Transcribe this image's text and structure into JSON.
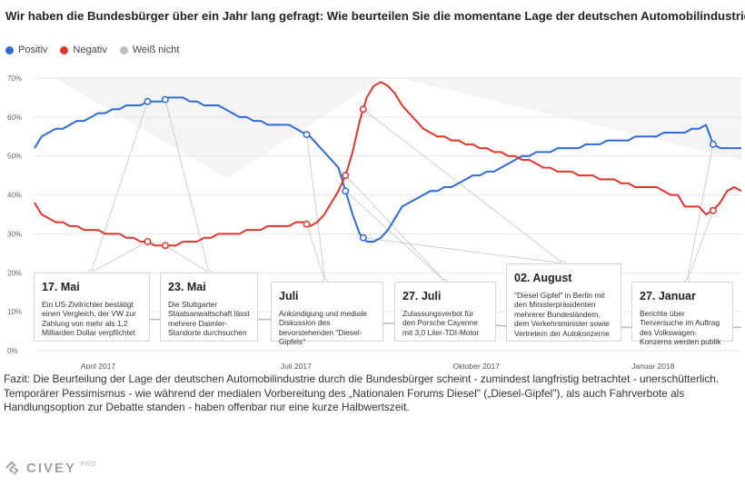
{
  "title": "Wir haben die Bundesbürger über ein Jahr lang gefragt: Wie beurteilen Sie die momentane Lage der deutschen Automobilindustrie?",
  "legend": [
    {
      "label": "Positiv",
      "color": "#2f6bd6"
    },
    {
      "label": "Negativ",
      "color": "#e0352b"
    },
    {
      "label": "Weiß nicht",
      "color": "#bdbdbd"
    }
  ],
  "chart_data": {
    "type": "line",
    "title": "Wie beurteilen Sie die momentane Lage der deutschen Automobilindustrie?",
    "ylim": [
      0,
      70
    ],
    "yticks": [
      0,
      10,
      20,
      30,
      40,
      50,
      60,
      70
    ],
    "ytick_labels": [
      "0%",
      "10%",
      "20%",
      "30%",
      "40%",
      "50%",
      "60%",
      "70%"
    ],
    "xlim": [
      0,
      100
    ],
    "xticks": [
      {
        "x": 9,
        "label": "April 2017"
      },
      {
        "x": 37,
        "label": "Juli 2017"
      },
      {
        "x": 62.5,
        "label": "Oktober 2017"
      },
      {
        "x": 87.5,
        "label": "Januar 2018"
      }
    ],
    "series": [
      {
        "name": "Positiv",
        "color": "#2f6bd6",
        "x": [
          0,
          1,
          2,
          3,
          4,
          5,
          6,
          7,
          8,
          9,
          10,
          11,
          12,
          13,
          14,
          15,
          16,
          17,
          18,
          19,
          20,
          21,
          22,
          23,
          24,
          25,
          26,
          27,
          28,
          29,
          30,
          31,
          32,
          33,
          34,
          35,
          36,
          37,
          38,
          39,
          40,
          41,
          42,
          43,
          44,
          45,
          46,
          47,
          48,
          49,
          50,
          51,
          52,
          53,
          54,
          55,
          56,
          57,
          58,
          59,
          60,
          61,
          62,
          63,
          64,
          65,
          66,
          67,
          68,
          69,
          70,
          71,
          72,
          73,
          74,
          75,
          76,
          77,
          78,
          79,
          80,
          81,
          82,
          83,
          84,
          85,
          86,
          87,
          88,
          89,
          90,
          91,
          92,
          93,
          94,
          95,
          96,
          97,
          98,
          99,
          100
        ],
        "values": [
          52,
          55,
          56,
          57,
          57,
          58,
          59,
          59,
          60,
          61,
          61,
          62,
          62,
          63,
          63,
          63,
          64,
          64,
          64,
          65,
          65,
          65,
          64,
          64,
          63,
          63,
          63,
          62,
          61,
          60,
          60,
          59,
          59,
          58,
          58,
          58,
          58,
          57,
          56,
          55,
          53,
          51,
          49,
          47,
          41,
          35,
          30,
          28,
          28,
          29,
          31,
          34,
          37,
          38,
          39,
          40,
          41,
          41,
          42,
          42,
          43,
          44,
          45,
          45,
          46,
          46,
          47,
          48,
          49,
          50,
          50,
          51,
          51,
          51,
          52,
          52,
          52,
          52,
          53,
          53,
          53,
          54,
          54,
          54,
          54,
          55,
          55,
          55,
          55,
          56,
          56,
          56,
          56,
          57,
          57,
          58,
          53,
          52,
          52,
          52,
          52
        ]
      },
      {
        "name": "Negativ",
        "color": "#e0352b",
        "x": [
          0,
          1,
          2,
          3,
          4,
          5,
          6,
          7,
          8,
          9,
          10,
          11,
          12,
          13,
          14,
          15,
          16,
          17,
          18,
          19,
          20,
          21,
          22,
          23,
          24,
          25,
          26,
          27,
          28,
          29,
          30,
          31,
          32,
          33,
          34,
          35,
          36,
          37,
          38,
          39,
          40,
          41,
          42,
          43,
          44,
          45,
          46,
          47,
          48,
          49,
          50,
          51,
          52,
          53,
          54,
          55,
          56,
          57,
          58,
          59,
          60,
          61,
          62,
          63,
          64,
          65,
          66,
          67,
          68,
          69,
          70,
          71,
          72,
          73,
          74,
          75,
          76,
          77,
          78,
          79,
          80,
          81,
          82,
          83,
          84,
          85,
          86,
          87,
          88,
          89,
          90,
          91,
          92,
          93,
          94,
          95,
          96,
          97,
          98,
          99,
          100
        ],
        "values": [
          38,
          35,
          34,
          33,
          33,
          32,
          32,
          31,
          31,
          31,
          30,
          30,
          30,
          29,
          29,
          28,
          28,
          27,
          27,
          27,
          27,
          28,
          28,
          28,
          29,
          29,
          30,
          30,
          30,
          30,
          31,
          31,
          31,
          32,
          32,
          32,
          32,
          33,
          33,
          32,
          33,
          35,
          38,
          41,
          45,
          51,
          59,
          65,
          68,
          69,
          68,
          66,
          63,
          61,
          59,
          57,
          56,
          55,
          55,
          54,
          54,
          53,
          53,
          52,
          52,
          51,
          51,
          50,
          50,
          49,
          49,
          48,
          47,
          47,
          46,
          46,
          46,
          45,
          45,
          45,
          44,
          44,
          44,
          43,
          43,
          42,
          42,
          42,
          42,
          41,
          40,
          40,
          37,
          37,
          37,
          35,
          36,
          38,
          41,
          42,
          41
        ]
      },
      {
        "name": "Weiß nicht",
        "color": "#bdbdbd",
        "x": [
          0,
          10,
          20,
          30,
          40,
          50,
          60,
          70,
          80,
          90,
          100
        ],
        "values": [
          8,
          8,
          8,
          8,
          8,
          7,
          7,
          6,
          6,
          6,
          6
        ]
      }
    ],
    "annotations": [
      {
        "date": "17. Mai",
        "text": "Ein US-Zivilrichter bestätigt einen Vergleich, der VW zur Zahlung von mehr als 1,2 Milliarden Dollar verpflichtet",
        "x": 16
      },
      {
        "date": "23. Mai",
        "text": "Die Stuttgarter Staatsanwaltschaft lässt mehrere Daimler-Standorte durchsuchen",
        "x": 18.5
      },
      {
        "date": "Juli",
        "text": "Ankündigung und mediale Diskussion des bevorstehenden \"Diesel-Gipfels\"",
        "x": 38.5
      },
      {
        "date": "27. Juli",
        "text": "Zulassungsverbot für den Porsche Cayenne mit 3,0 Liter-TDI-Motor",
        "x": 44
      },
      {
        "date": "02. August",
        "text": "\"Diesel Gipfel\" in Berlin mit den Ministerpräsidenten mehrerer Bundesländern, dem Verkehrsminister sowie Vertretern der Autokonzerne",
        "x": 46.5
      },
      {
        "date": "27. Januar",
        "text": "Berichte über Tierversuche im Auftrag des Volkswagen-Konzerns werden publik",
        "x": 96
      }
    ]
  },
  "fazit": "Fazit: Die Beurteilung der Lage der deutschen Automobilindustrie durch die Bundesbürger scheint - zumindest langfristig betrachtet - unerschütterlich. Temporärer Pessimismus - wie während der medialen Vorbereitung des „Nationalen Forums Diesel\" („Diesel-Gipfel\"), als auch Fahrverbote als Handlungsoption zur Debatte standen - haben offenbar nur eine kurze Halbwertszeit.",
  "logo": {
    "name": "CIVEY",
    "badge": "PRO"
  }
}
